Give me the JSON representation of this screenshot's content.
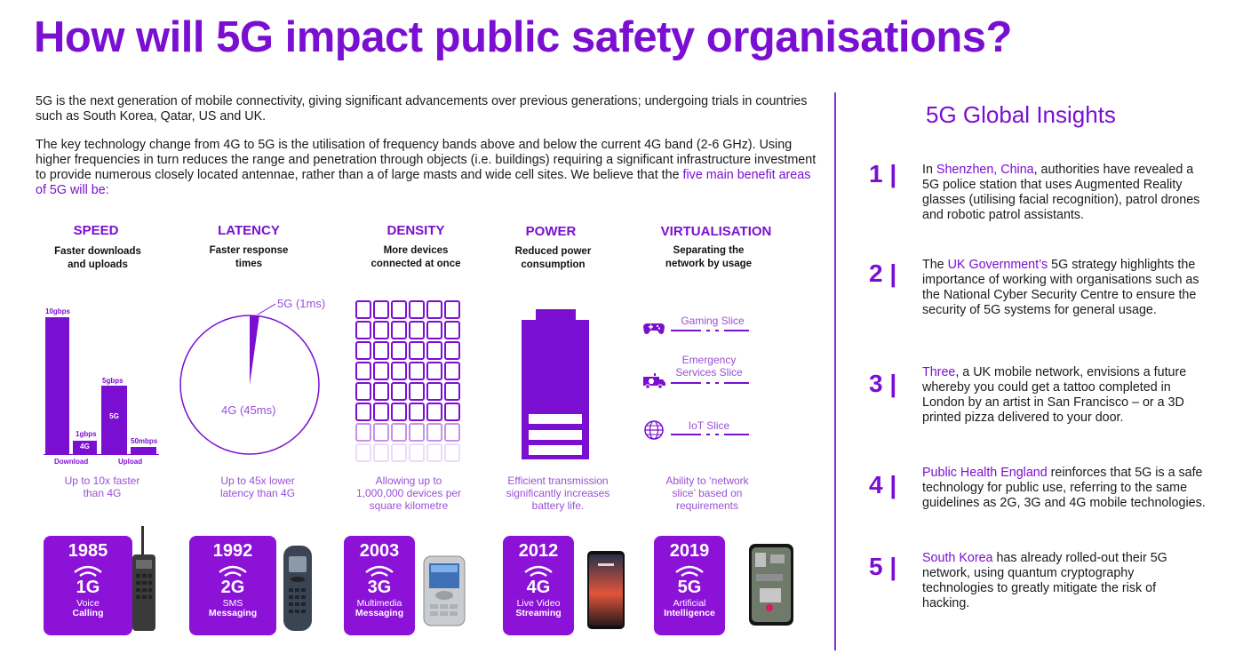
{
  "title": "How will 5G impact public safety organisations?",
  "intro": {
    "p1": "5G is the next generation of mobile connectivity, giving significant advancements over previous generations;  undergoing trials in countries such as South Korea, Qatar, US and UK.",
    "p2": "The key technology change from 4G to 5G is the utilisation of frequency bands above and below the current 4G band (2-6 GHz). Using higher frequencies in turn reduces the range and penetration through objects (i.e. buildings) requiring a significant infrastructure investment to provide numerous closely located antennae, rather than a of large masts and wide cell sites. We believe that the",
    "p2_highlight": "five main benefit areas of 5G will be:"
  },
  "benefits": [
    {
      "head": "SPEED",
      "sub": "Faster downloads and uploads",
      "foot": "Up to 10x faster than 4G"
    },
    {
      "head": "LATENCY",
      "sub": "Faster response times",
      "foot": "Up to 45x lower latency than 4G"
    },
    {
      "head": "DENSITY",
      "sub": "More devices connected at once",
      "foot": "Allowing up to 1,000,000 devices per square kilometre"
    },
    {
      "head": "POWER",
      "sub": "Reduced power consumption",
      "foot": "Efficient transmission significantly increases battery life."
    },
    {
      "head": "VIRTUALISATION",
      "sub": "Separating the network by usage",
      "foot": "Ability to ‘network slice’ based on requirements"
    }
  ],
  "speed_chart": {
    "labels": {
      "download_4g": "1gbps",
      "download_5g": "10gbps",
      "upload_4g": "50mbps",
      "upload_5g": "5gbps",
      "bar_4g": "4G",
      "bar_5g": "5G",
      "group_download": "Download",
      "group_upload": "Upload"
    },
    "values_gbps": {
      "download_5g": 10,
      "download_4g": 1,
      "upload_5g": 5,
      "upload_4g": 0.05
    }
  },
  "latency_chart": {
    "label_5g": "5G (1ms)",
    "label_4g": "4G (45ms)",
    "value_5g_ms": 1,
    "value_4g_ms": 45
  },
  "power_chart": {
    "battery_bars": 3
  },
  "slices": [
    "Gaming Slice",
    "Emergency Services Slice",
    "IoT Slice"
  ],
  "eras": [
    {
      "year": "1985",
      "gen": "1G",
      "line1": "Voice",
      "line2": "Calling"
    },
    {
      "year": "1992",
      "gen": "2G",
      "line1": "SMS",
      "line2": "Messaging"
    },
    {
      "year": "2003",
      "gen": "3G",
      "line1": "Multimedia",
      "line2": "Messaging"
    },
    {
      "year": "2012",
      "gen": "4G",
      "line1": "Live Video",
      "line2": "Streaming"
    },
    {
      "year": "2019",
      "gen": "5G",
      "line1": "Artificial",
      "line2": "Intelligence"
    }
  ],
  "sidebar": {
    "title_a": "5G Global",
    "title_b": "Insights",
    "insights": [
      {
        "num": "1 |",
        "highlight": "Shenzhen, China",
        "pre": "In ",
        "post": ", authorities have revealed a 5G police station that uses Augmented Reality glasses (utilising facial recognition), patrol drones and robotic patrol assistants."
      },
      {
        "num": "2 |",
        "highlight": "UK Government’s",
        "pre": "The ",
        "post": " 5G strategy highlights the importance of working with organisations such as the National Cyber Security Centre to ensure the security of 5G systems for general usage."
      },
      {
        "num": "3 |",
        "highlight": "Three",
        "pre": "",
        "post": ", a UK mobile network, envisions a future whereby you could get a tattoo completed in London by an artist in San Francisco – or a 3D printed pizza delivered to your door."
      },
      {
        "num": "4 |",
        "highlight": "Public Health England",
        "pre": "",
        "post": " reinforces that 5G is a safe technology for public use, referring to the same guidelines as 2G, 3G and 4G mobile technologies."
      },
      {
        "num": "5 |",
        "highlight": "South Korea",
        "pre": "",
        "post": " has already rolled-out their 5G network, using quantum cryptography technologies to greatly mitigate the risk of hacking."
      }
    ]
  },
  "colors": {
    "accent": "#7b0fd1",
    "light_accent": "#9a4fd8",
    "card": "#8b12d6"
  }
}
